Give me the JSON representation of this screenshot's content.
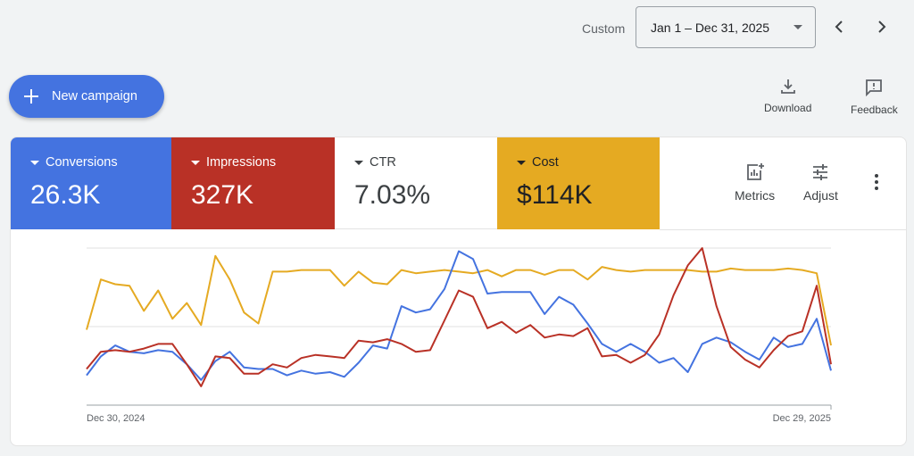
{
  "header": {
    "range_type": "Custom",
    "date_range": "Jan 1 – Dec 31, 2025",
    "prev_icon": "chevron-left-icon",
    "next_icon": "chevron-right-icon"
  },
  "actions": {
    "new_campaign": "New campaign",
    "download": "Download",
    "feedback": "Feedback"
  },
  "metrics": [
    {
      "label": "Conversions",
      "value": "26.3K",
      "color": "#4473e0",
      "selected": true
    },
    {
      "label": "Impressions",
      "value": "327K",
      "color": "#b93126",
      "selected": true
    },
    {
      "label": "CTR",
      "value": "7.03%",
      "color": "#ffffff",
      "selected": false
    },
    {
      "label": "Cost",
      "value": "$114K",
      "color": "#e5aa22",
      "selected": true
    }
  ],
  "card_actions": {
    "metrics": "Metrics",
    "adjust": "Adjust",
    "more_icon": "more-vert-icon"
  },
  "chart_data": {
    "type": "line",
    "x_start_label": "Dec 30, 2024",
    "x_end_label": "Dec 29, 2025",
    "ylim": [
      0,
      100
    ],
    "grid": true,
    "y_ticks_shown": false,
    "series": [
      {
        "metric": "Cost",
        "color": "#e5aa22",
        "values": [
          48,
          80,
          77,
          76,
          60,
          73,
          55,
          65,
          51,
          95,
          80,
          59,
          52,
          85,
          85,
          86,
          86,
          86,
          76,
          85,
          78,
          77,
          86,
          84,
          85,
          86,
          85,
          84,
          86,
          82,
          86,
          86,
          83,
          86,
          86,
          80,
          88,
          86,
          85,
          86,
          86,
          86,
          86,
          85,
          85,
          87,
          86,
          86,
          86,
          87,
          86,
          84,
          38
        ]
      },
      {
        "metric": "Conversions",
        "color": "#4473e0",
        "values": [
          19,
          31,
          38,
          34,
          33,
          35,
          34,
          26,
          16,
          28,
          34,
          24,
          23,
          23,
          19,
          22,
          20,
          21,
          18,
          27,
          38,
          36,
          63,
          59,
          61,
          74,
          98,
          93,
          71,
          72,
          72,
          72,
          58,
          69,
          64,
          52,
          39,
          34,
          39,
          34,
          27,
          30,
          21,
          39,
          43,
          40,
          34,
          29,
          43,
          37,
          39,
          55,
          22
        ]
      },
      {
        "metric": "Impressions",
        "color": "#b93126",
        "values": [
          23,
          34,
          35,
          34,
          36,
          39,
          39,
          26,
          12,
          31,
          30,
          20,
          20,
          26,
          24,
          30,
          32,
          31,
          30,
          41,
          40,
          42,
          39,
          34,
          35,
          54,
          73,
          69,
          49,
          53,
          46,
          51,
          43,
          45,
          44,
          49,
          31,
          32,
          27,
          32,
          45,
          70,
          89,
          100,
          63,
          37,
          29,
          24,
          35,
          44,
          47,
          76,
          26
        ]
      }
    ]
  }
}
